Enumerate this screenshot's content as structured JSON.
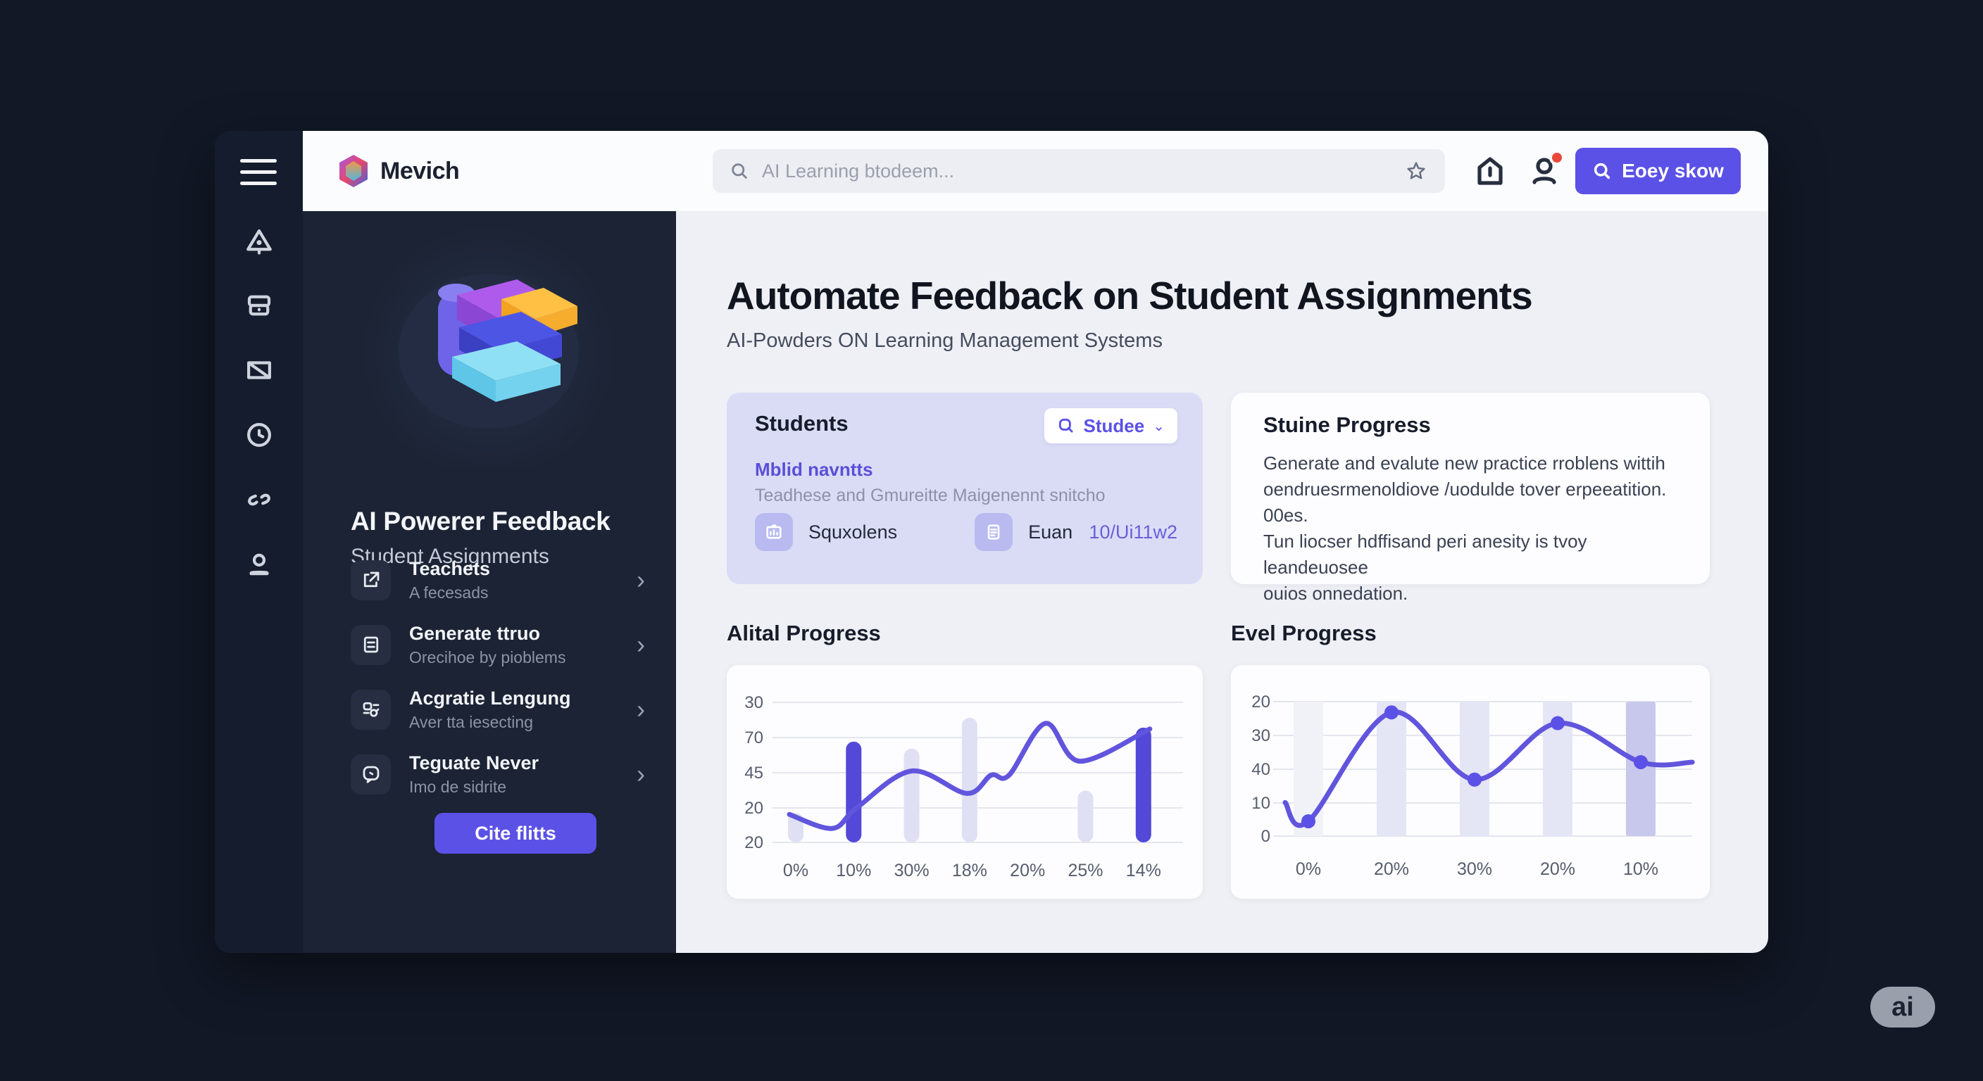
{
  "header": {
    "brand": "Mevich",
    "search_placeholder": "AI Learning btodeem...",
    "cta_label": "Eoey skow"
  },
  "rail": {
    "icons": [
      "hamburger-menu",
      "alert-triangle",
      "briefcase",
      "mail",
      "clock",
      "link",
      "user"
    ]
  },
  "sidebar": {
    "title": "AI Powerer Feedback",
    "subtitle": "Student Assignments",
    "items": [
      {
        "label": "Teachets",
        "sub": "A fecesads",
        "icon": "share-box"
      },
      {
        "label": "Generate ttruo",
        "sub": "Orecihoe by pioblems",
        "icon": "document-lines"
      },
      {
        "label": "Acgratie Lengung",
        "sub": "Aver tta iesecting",
        "icon": "flask-settings"
      },
      {
        "label": "Teguate Never",
        "sub": "Imo de sidrite",
        "icon": "chat-square"
      }
    ],
    "chevron": "›",
    "cta_label": "Cite flitts"
  },
  "main": {
    "heading": "Automate Feedback on Student Assignments",
    "subheading": "AI-Powders ON Learning Management Systems",
    "students_card": {
      "title": "Students",
      "dropdown_label": "Studee",
      "dropdown_chevron": "⌄",
      "link_text": "Mblid navntts",
      "description": "Teadhese and Gmureitte Maigenennt snitcho",
      "stats": [
        {
          "label": "Squxolens",
          "icon": "folder-chart"
        },
        {
          "label": "Euan",
          "icon": "document"
        }
      ],
      "value_text": "10/Ui11w2"
    },
    "progress_card": {
      "title": "Stuine Progress",
      "lines": [
        "Generate and evalute new practice rroblens wittih",
        "oendruesrmenoldiove /uodulde tover erpeeatition.",
        "00es.",
        "Tun liocser hdffisand peri anesity is tvoy leandeuosee",
        "ouios onnedation."
      ]
    }
  },
  "chart_data": [
    {
      "type": "line+bar",
      "title": "Alital Progress",
      "yticks": [
        "30",
        "70",
        "45",
        "20",
        "20"
      ],
      "xticks": [
        "0%",
        "10%",
        "30%",
        "18%",
        "20%",
        "25%",
        "14%"
      ],
      "ylim": [
        0,
        100
      ],
      "grid": true,
      "bars": [
        {
          "x": 0,
          "value": 21,
          "style": "light"
        },
        {
          "x": 1,
          "value": 72,
          "style": "dark"
        },
        {
          "x": 2,
          "value": 67,
          "style": "light"
        },
        {
          "x": 3,
          "value": 89,
          "style": "light"
        },
        {
          "x": 5,
          "value": 37,
          "style": "light"
        },
        {
          "x": 6,
          "value": 82,
          "style": "dark"
        }
      ],
      "line": [
        [
          -0.11,
          20
        ],
        [
          0.63,
          10
        ],
        [
          1.06,
          25
        ],
        [
          2,
          51
        ],
        [
          2.95,
          35
        ],
        [
          3.37,
          48
        ],
        [
          3.68,
          48
        ],
        [
          4.31,
          85
        ],
        [
          4.9,
          58
        ],
        [
          6.11,
          81
        ]
      ]
    },
    {
      "type": "line+band",
      "title": "Evel Progress",
      "yticks": [
        "20",
        "30",
        "40",
        "10",
        "0"
      ],
      "xticks": [
        "0%",
        "20%",
        "30%",
        "20%",
        "10%"
      ],
      "ylim": [
        0,
        100
      ],
      "grid": true,
      "bands": [
        {
          "x": 0,
          "style": "faint"
        },
        {
          "x": 1,
          "style": "light"
        },
        {
          "x": 2,
          "style": "light"
        },
        {
          "x": 3,
          "style": "light"
        },
        {
          "x": 4,
          "style": "dark"
        }
      ],
      "line": [
        [
          -0.28,
          25
        ],
        [
          0,
          11
        ],
        [
          1,
          92
        ],
        [
          2,
          42
        ],
        [
          3,
          84
        ],
        [
          4,
          55
        ],
        [
          4.62,
          55
        ]
      ],
      "dots": [
        [
          0,
          11
        ],
        [
          1,
          92
        ],
        [
          2,
          42
        ],
        [
          3,
          84
        ],
        [
          4,
          55
        ]
      ]
    }
  ],
  "badge": {
    "label": "ai"
  },
  "colors": {
    "accent": "#5b51e6",
    "line": "#6155dd",
    "bar_light": "#dfe0f3",
    "bar_dark": "#5348d8",
    "band_faint": "#f1f2f8",
    "band_light": "#e4e5f5",
    "band_dark": "#c7c8ec",
    "grid": "#e4e6ee",
    "tick_text": "#565d6e",
    "badge_red": "#e8483a"
  }
}
